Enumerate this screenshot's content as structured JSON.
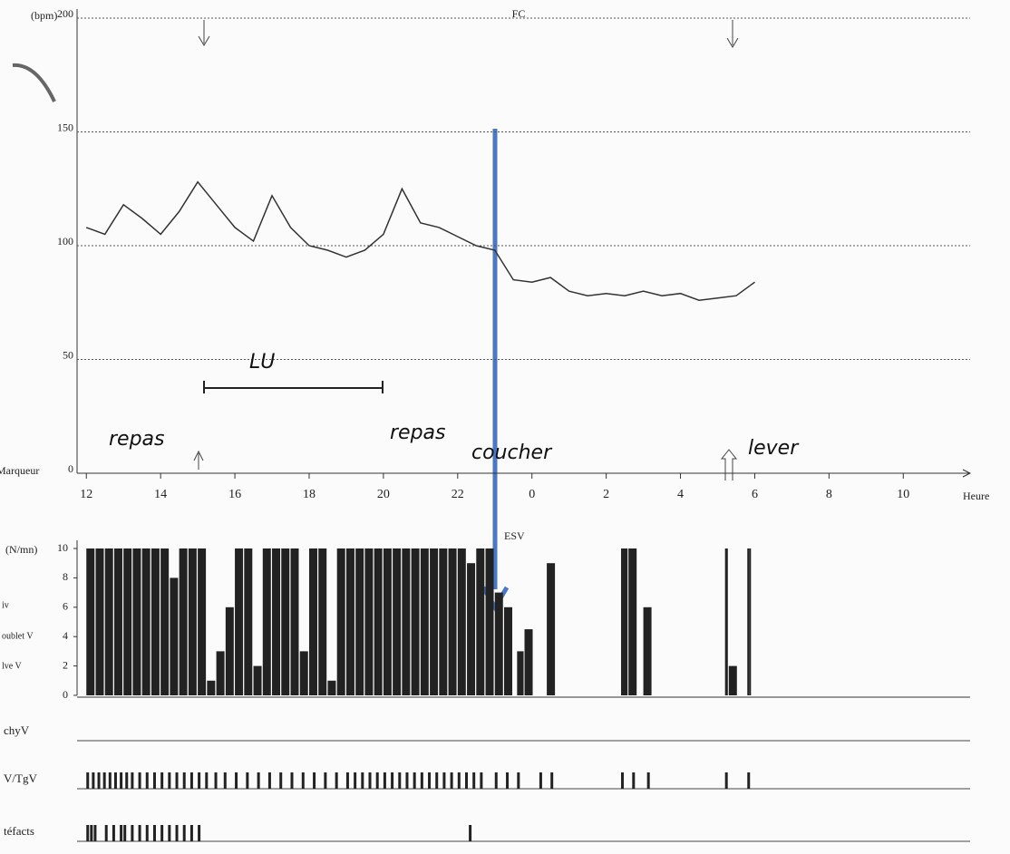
{
  "chart_data": [
    {
      "type": "line",
      "title": "FC",
      "y_label": "(bpm)",
      "x_label": "Heure",
      "marker_label": "Marqueur",
      "color": "#333333",
      "grid": true,
      "xlim": [
        11.75,
        35.8
      ],
      "xticks": [
        12,
        14,
        16,
        18,
        20,
        22,
        {
          "value": 24,
          "label": "0"
        },
        {
          "value": 26,
          "label": "2"
        },
        {
          "value": 28,
          "label": "4"
        },
        {
          "value": 30,
          "label": "6"
        },
        {
          "value": 32,
          "label": "8"
        },
        {
          "value": 34,
          "label": "10"
        }
      ],
      "ylim": [
        0,
        200
      ],
      "yticks": [
        0,
        50,
        100,
        150,
        200
      ],
      "x": [
        12,
        12.5,
        13,
        13.5,
        14,
        14.5,
        15,
        15.5,
        16,
        16.5,
        17,
        17.5,
        18,
        18.5,
        19,
        19.5,
        20,
        20.5,
        21,
        21.5,
        22,
        22.5,
        23,
        23.5,
        24,
        24.5,
        25,
        25.5,
        26,
        26.5,
        27,
        27.5,
        28,
        28.5,
        29,
        29.5,
        30
      ],
      "values": [
        108,
        105,
        118,
        112,
        105,
        115,
        128,
        118,
        108,
        102,
        122,
        108,
        100,
        98,
        95,
        98,
        105,
        125,
        110,
        108,
        104,
        100,
        98,
        85,
        84,
        86,
        80,
        78,
        79,
        78,
        80,
        78,
        79,
        76,
        77,
        78,
        84
      ],
      "annotations": [
        "repas",
        "LU",
        "repas",
        "coucher",
        "lever"
      ]
    },
    {
      "type": "bar",
      "title": "ESV",
      "y_label": "(N/mn)",
      "color": "#222222",
      "xlim": [
        11.75,
        35.8
      ],
      "ylim": [
        0,
        10
      ],
      "yticks": [
        0,
        2,
        4,
        6,
        8,
        10
      ],
      "row_labels": [
        "iv",
        "oublet V",
        "lve V"
      ],
      "x": [
        12,
        12.25,
        12.5,
        12.75,
        13,
        13.25,
        13.5,
        13.75,
        14,
        14.25,
        14.5,
        14.75,
        15,
        15.25,
        15.5,
        15.75,
        16,
        16.25,
        16.5,
        16.75,
        17,
        17.25,
        17.5,
        17.75,
        18,
        18.25,
        18.5,
        18.75,
        19,
        19.25,
        19.5,
        19.75,
        20,
        20.25,
        20.5,
        20.75,
        21,
        21.25,
        21.5,
        21.75,
        22,
        22.25,
        22.5,
        22.75,
        23,
        23.25,
        23.6,
        23.8,
        24.4,
        26.4,
        26.6,
        27,
        29.2,
        29.3,
        29.8,
        29.85
      ],
      "values": [
        10,
        10,
        10,
        10,
        10,
        10,
        10,
        10,
        10,
        8,
        10,
        10,
        10,
        1,
        3,
        6,
        10,
        10,
        2,
        10,
        10,
        10,
        10,
        3,
        10,
        10,
        1,
        10,
        10,
        10,
        10,
        10,
        10,
        10,
        10,
        10,
        10,
        10,
        10,
        10,
        10,
        9,
        10,
        10,
        7,
        6,
        3,
        4.5,
        9,
        10,
        10,
        6,
        10,
        2,
        10,
        10
      ]
    },
    {
      "type": "events",
      "label": "chyV",
      "x": []
    },
    {
      "type": "events",
      "label": "V/TgV",
      "x": [
        12,
        12.15,
        12.3,
        12.45,
        12.6,
        12.75,
        12.9,
        13.05,
        13.2,
        13.4,
        13.6,
        13.8,
        14,
        14.2,
        14.4,
        14.6,
        14.8,
        15,
        15.2,
        15.45,
        15.7,
        16,
        16.3,
        16.6,
        16.9,
        17.2,
        17.5,
        17.8,
        18.1,
        18.4,
        18.7,
        19,
        19.2,
        19.4,
        19.6,
        19.8,
        20,
        20.2,
        20.4,
        20.6,
        20.8,
        21,
        21.2,
        21.4,
        21.6,
        21.8,
        22,
        22.2,
        22.4,
        22.6,
        23,
        23.3,
        23.6,
        24.2,
        24.5,
        26.4,
        26.7,
        27.1,
        29.2,
        29.8
      ]
    },
    {
      "type": "events",
      "label": "téfacts",
      "x": [
        12,
        12.1,
        12.2,
        12.5,
        12.7,
        12.9,
        13,
        13.2,
        13.4,
        13.6,
        13.8,
        14,
        14.2,
        14.4,
        14.6,
        14.8,
        15,
        22.3
      ]
    }
  ]
}
